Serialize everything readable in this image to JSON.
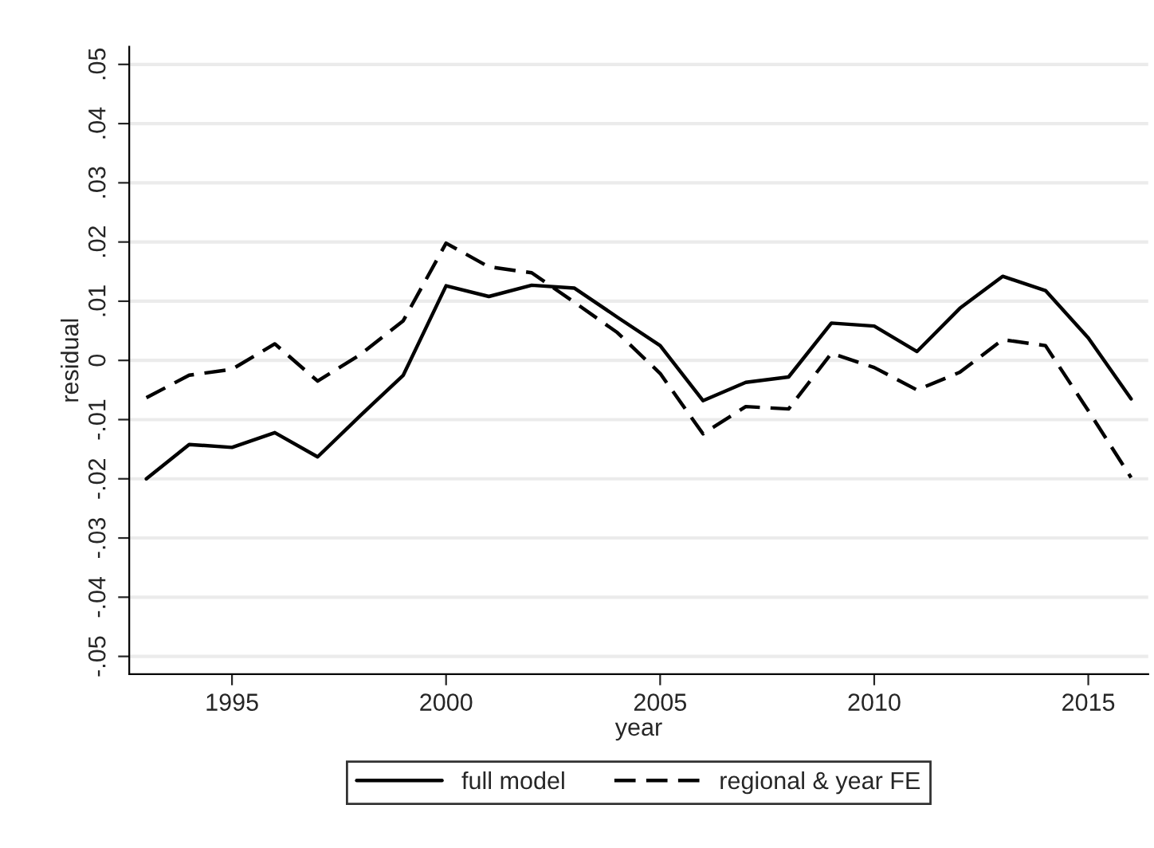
{
  "chart_data": {
    "type": "line",
    "xlabel": "year",
    "ylabel": "residual",
    "x": [
      1993,
      1994,
      1995,
      1996,
      1997,
      1998,
      1999,
      2000,
      2001,
      2002,
      2003,
      2004,
      2005,
      2006,
      2007,
      2008,
      2009,
      2010,
      2011,
      2012,
      2013,
      2014,
      2015,
      2016
    ],
    "series": [
      {
        "name": "full model",
        "color": "#000000",
        "line_style": "solid",
        "values": [
          -0.02,
          -0.0142,
          -0.0147,
          -0.0122,
          -0.0163,
          -0.0093,
          -0.0025,
          0.0126,
          0.0108,
          0.0127,
          0.0122,
          0.0073,
          0.0025,
          -0.0068,
          -0.0037,
          -0.0028,
          0.0063,
          0.0058,
          0.0015,
          0.0088,
          0.0142,
          0.0118,
          0.0038,
          -0.0065
        ]
      },
      {
        "name": "regional & year FE",
        "color": "#000000",
        "line_style": "dashed",
        "values": [
          -0.0063,
          -0.0025,
          -0.0015,
          0.0028,
          -0.0035,
          0.001,
          0.0067,
          0.0198,
          0.0158,
          0.0148,
          0.0098,
          0.0047,
          -0.0022,
          -0.0124,
          -0.0078,
          -0.0082,
          0.0012,
          -0.0012,
          -0.005,
          -0.002,
          0.0035,
          0.0025,
          -0.0085,
          -0.0198
        ]
      }
    ],
    "xlim": [
      1992.6,
      2016.4
    ],
    "xticks": [
      1995,
      2000,
      2005,
      2010,
      2015
    ],
    "ylim": [
      -0.053,
      0.053
    ],
    "yticks": [
      {
        "value": -0.05,
        "label": "-.05"
      },
      {
        "value": -0.04,
        "label": "-.04"
      },
      {
        "value": -0.03,
        "label": "-.03"
      },
      {
        "value": -0.02,
        "label": "-.02"
      },
      {
        "value": -0.01,
        "label": "-.01"
      },
      {
        "value": 0,
        "label": "0"
      },
      {
        "value": 0.01,
        "label": ".01"
      },
      {
        "value": 0.02,
        "label": ".02"
      },
      {
        "value": 0.03,
        "label": ".03"
      },
      {
        "value": 0.04,
        "label": ".04"
      },
      {
        "value": 0.05,
        "label": ".05"
      }
    ],
    "grid": "y",
    "legend": "bottom",
    "marker": "none"
  }
}
